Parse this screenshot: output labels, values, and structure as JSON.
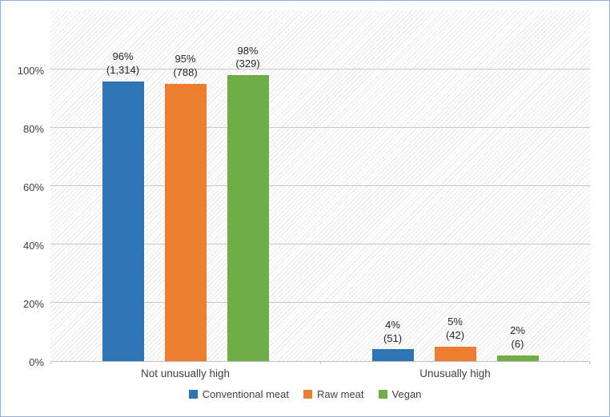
{
  "chart_data": {
    "type": "bar",
    "title": "",
    "categories": [
      "Not unusually high",
      "Unusually high"
    ],
    "series": [
      {
        "name": "Conventional meat",
        "color": "#2E75B6",
        "values": [
          96,
          4
        ],
        "counts": [
          1314,
          51
        ],
        "data_labels": [
          [
            "96%",
            "(1,314)"
          ],
          [
            "4%",
            "(51)"
          ]
        ]
      },
      {
        "name": "Raw meat",
        "color": "#ED7D31",
        "values": [
          95,
          5
        ],
        "counts": [
          788,
          42
        ],
        "data_labels": [
          [
            "95%",
            "(788)"
          ],
          [
            "5%",
            "(42)"
          ]
        ]
      },
      {
        "name": "Vegan",
        "color": "#70AD47",
        "values": [
          98,
          2
        ],
        "counts": [
          329,
          6
        ],
        "data_labels": [
          [
            "98%",
            "(329)"
          ],
          [
            "2%",
            "(6)"
          ]
        ]
      }
    ],
    "xlabel": "",
    "ylabel": "",
    "ylim": [
      0,
      100
    ],
    "yticks": [
      {
        "value": 0,
        "label": "0%"
      },
      {
        "value": 20,
        "label": "20%"
      },
      {
        "value": 40,
        "label": "40%"
      },
      {
        "value": 60,
        "label": "60%"
      },
      {
        "value": 80,
        "label": "80%"
      },
      {
        "value": 100,
        "label": "100%"
      }
    ],
    "grid": true,
    "legend_position": "bottom",
    "plot_background": "diagonal-hatch"
  }
}
